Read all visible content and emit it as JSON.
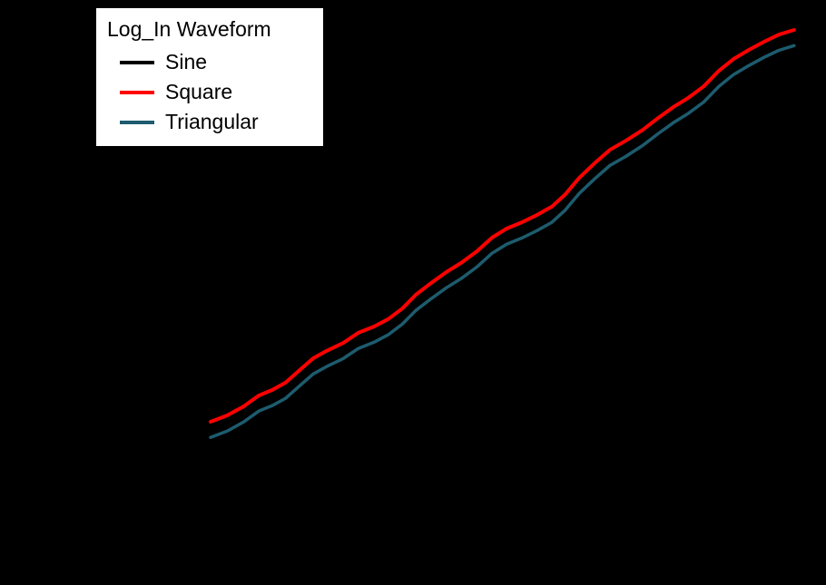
{
  "chart": {
    "background": "#000000",
    "legend": {
      "title": "Log_In Waveform",
      "items": [
        {
          "label": "Sine",
          "color": "#000000"
        },
        {
          "label": "Square",
          "color": "#ff0000"
        },
        {
          "label": "Triangular",
          "color": "#1d5c6e"
        }
      ]
    }
  },
  "chart_data": {
    "type": "line",
    "title": "",
    "xlabel": "",
    "ylabel": "",
    "xlim": [
      0,
      1
    ],
    "ylim": [
      0,
      1
    ],
    "grid": false,
    "legend_position": "top-left",
    "note_axes": "",
    "x": [
      0.0,
      0.028,
      0.056,
      0.082,
      0.105,
      0.128,
      0.152,
      0.175,
      0.198,
      0.226,
      0.252,
      0.279,
      0.303,
      0.327,
      0.35,
      0.376,
      0.402,
      0.427,
      0.454,
      0.48,
      0.505,
      0.531,
      0.557,
      0.582,
      0.604,
      0.629,
      0.655,
      0.681,
      0.709,
      0.737,
      0.763,
      0.789,
      0.814,
      0.841,
      0.867,
      0.892,
      0.918,
      0.944,
      0.969,
      0.995
    ],
    "series": [
      {
        "name": "Sine",
        "color": "#000000",
        "width": 3.5,
        "values": [
          0.0,
          0.016,
          0.039,
          0.067,
          0.081,
          0.1,
          0.132,
          0.162,
          0.181,
          0.201,
          0.227,
          0.243,
          0.262,
          0.289,
          0.324,
          0.354,
          0.382,
          0.405,
          0.435,
          0.47,
          0.493,
          0.509,
          0.528,
          0.549,
          0.579,
          0.623,
          0.66,
          0.694,
          0.718,
          0.745,
          0.775,
          0.803,
          0.826,
          0.856,
          0.896,
          0.926,
          0.949,
          0.97,
          0.988,
          1.0
        ]
      },
      {
        "name": "Square",
        "color": "#ff0000",
        "width": 4,
        "values": [
          0.0,
          0.016,
          0.039,
          0.067,
          0.081,
          0.1,
          0.132,
          0.162,
          0.181,
          0.201,
          0.227,
          0.243,
          0.262,
          0.289,
          0.324,
          0.354,
          0.382,
          0.405,
          0.435,
          0.47,
          0.493,
          0.509,
          0.528,
          0.549,
          0.579,
          0.623,
          0.66,
          0.694,
          0.718,
          0.745,
          0.775,
          0.803,
          0.826,
          0.856,
          0.896,
          0.926,
          0.949,
          0.97,
          0.988,
          1.0
        ]
      },
      {
        "name": "Triangular",
        "color": "#1d5c6e",
        "width": 3.5,
        "values": [
          -0.04,
          -0.024,
          -0.001,
          0.027,
          0.041,
          0.06,
          0.092,
          0.122,
          0.141,
          0.161,
          0.187,
          0.203,
          0.222,
          0.249,
          0.284,
          0.314,
          0.342,
          0.365,
          0.395,
          0.43,
          0.453,
          0.469,
          0.488,
          0.509,
          0.539,
          0.583,
          0.62,
          0.654,
          0.678,
          0.705,
          0.735,
          0.763,
          0.786,
          0.816,
          0.856,
          0.886,
          0.909,
          0.93,
          0.948,
          0.96
        ]
      }
    ]
  }
}
